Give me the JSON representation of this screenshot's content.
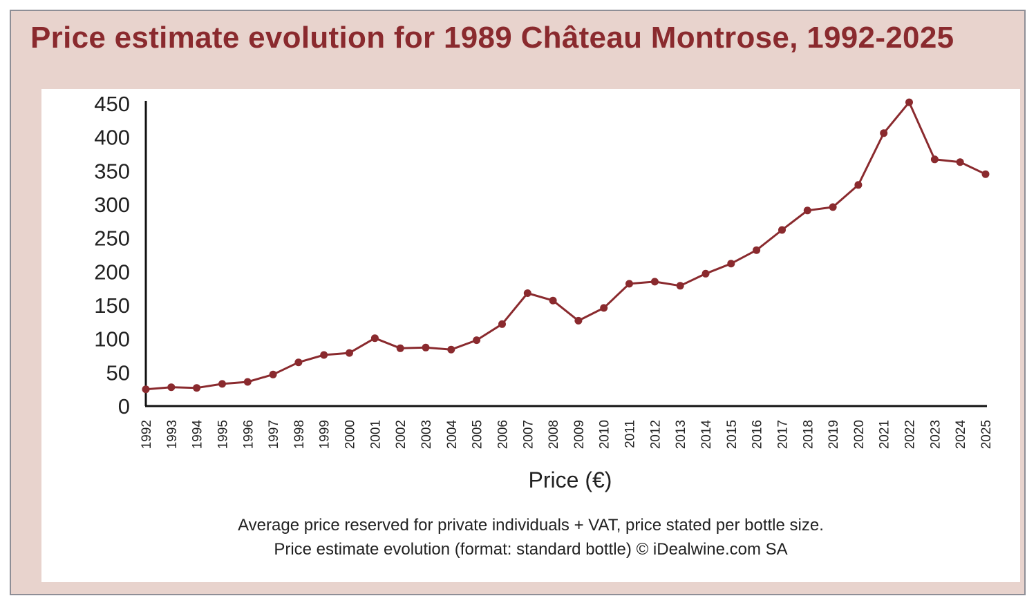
{
  "chart_data": {
    "type": "line",
    "title": "Price estimate evolution for 1989 Château Montrose, 1992-2025",
    "xlabel": "Price (€)",
    "ylabel": "",
    "ylim": [
      0,
      450
    ],
    "yticks": [
      0,
      50,
      100,
      150,
      200,
      250,
      300,
      350,
      400,
      450
    ],
    "categories": [
      "1992",
      "1993",
      "1994",
      "1995",
      "1996",
      "1997",
      "1998",
      "1999",
      "2000",
      "2001",
      "2002",
      "2003",
      "2004",
      "2005",
      "2006",
      "2007",
      "2008",
      "2009",
      "2010",
      "2011",
      "2012",
      "2013",
      "2014",
      "2015",
      "2016",
      "2017",
      "2018",
      "2019",
      "2020",
      "2021",
      "2022",
      "2023",
      "2024",
      "2025"
    ],
    "series": [
      {
        "name": "Price (€)",
        "color": "#8a2a2e",
        "values": [
          25,
          28,
          27,
          33,
          36,
          47,
          65,
          76,
          79,
          101,
          86,
          87,
          84,
          98,
          122,
          168,
          157,
          127,
          146,
          182,
          185,
          179,
          197,
          212,
          232,
          262,
          291,
          296,
          329,
          406,
          452,
          367,
          363,
          345
        ]
      }
    ],
    "grid": false,
    "legend": "none"
  },
  "footnotes": {
    "line1": "Average price reserved for private individuals + VAT, price stated per bottle size.",
    "line2": "Price estimate evolution (format: standard bottle) © iDealwine.com SA"
  }
}
